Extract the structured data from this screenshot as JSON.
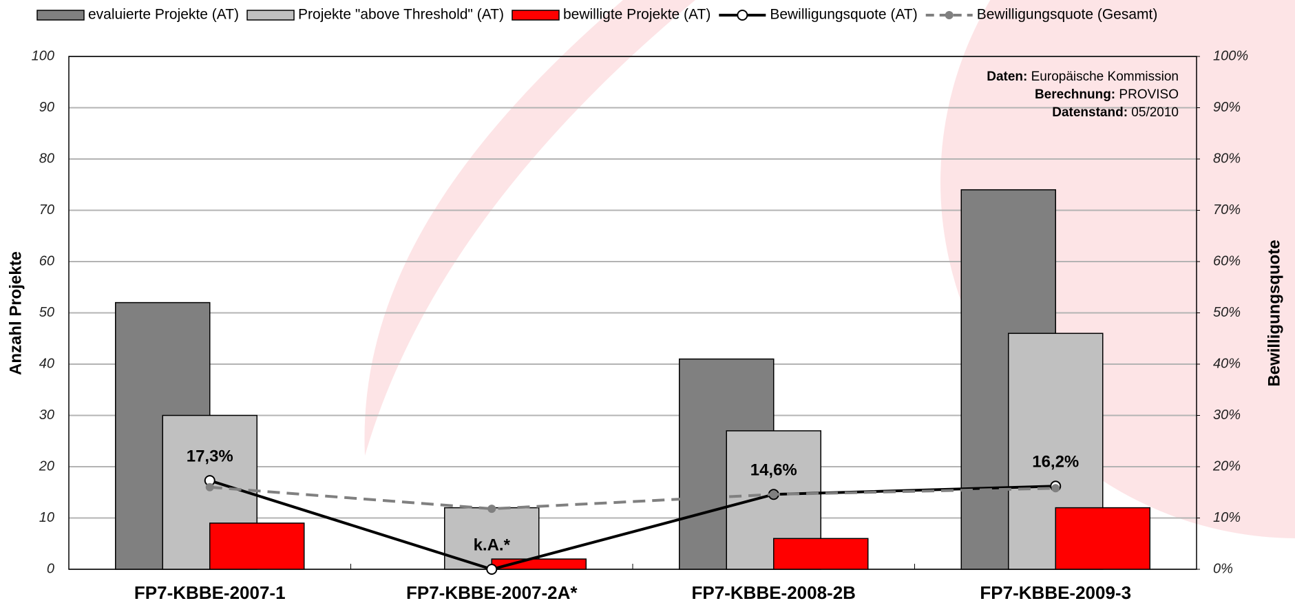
{
  "chart_data": {
    "type": "bar",
    "categories": [
      "FP7-KBBE-2007-1",
      "FP7-KBBE-2007-2A*",
      "FP7-KBBE-2008-2B",
      "FP7-KBBE-2009-3"
    ],
    "series": [
      {
        "name": "evaluierte Projekte (AT)",
        "color": "#808080",
        "type": "bar",
        "values": [
          52,
          null,
          41,
          74
        ]
      },
      {
        "name": "Projekte \"above Threshold\" (AT)",
        "color": "#c0c0c0",
        "type": "bar",
        "values": [
          30,
          12,
          27,
          46
        ]
      },
      {
        "name": "bewilligte Projekte (AT)",
        "color": "#ff0000",
        "type": "bar",
        "values": [
          9,
          2,
          6,
          12
        ]
      },
      {
        "name": "Bewilligungsquote (AT)",
        "color": "#000000",
        "type": "line",
        "axis": "y2",
        "values": [
          17.3,
          0,
          14.6,
          16.2
        ],
        "value_labels": [
          "17,3%",
          "k.A.*",
          "14,6%",
          "16,2%"
        ]
      },
      {
        "name": "Bewilligungsquote (Gesamt)",
        "color": "#808080",
        "type": "line",
        "dashed": true,
        "axis": "y2",
        "values": [
          16,
          11.8,
          14.6,
          15.8
        ]
      }
    ],
    "y_label": "Anzahl Projekte",
    "y2_label": "Bewilligungsquote",
    "ylim": [
      0,
      100
    ],
    "yticks": [
      0,
      10,
      20,
      30,
      40,
      50,
      60,
      70,
      80,
      90,
      100
    ],
    "y2lim": [
      0,
      100
    ],
    "y2ticks": [
      {
        "value": 0,
        "label": "0%"
      },
      {
        "value": 10,
        "label": "10%"
      },
      {
        "value": 20,
        "label": "20%"
      },
      {
        "value": 30,
        "label": "30%"
      },
      {
        "value": 40,
        "label": "40%"
      },
      {
        "value": 50,
        "label": "50%"
      },
      {
        "value": 60,
        "label": "60%"
      },
      {
        "value": 70,
        "label": "70%"
      },
      {
        "value": 80,
        "label": "80%"
      },
      {
        "value": 90,
        "label": "90%"
      },
      {
        "value": 100,
        "label": "100%"
      }
    ],
    "grid": true,
    "legend": "top",
    "source": [
      {
        "label": "Daten:",
        "text": "Europäische Kommission"
      },
      {
        "label": "Berechnung:",
        "text": "PROVISO"
      },
      {
        "label": "Datenstand:",
        "text": "05/2010"
      }
    ]
  }
}
